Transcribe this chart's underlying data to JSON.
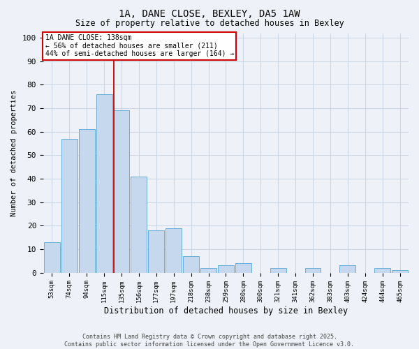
{
  "title_line1": "1A, DANE CLOSE, BEXLEY, DA5 1AW",
  "title_line2": "Size of property relative to detached houses in Bexley",
  "xlabel": "Distribution of detached houses by size in Bexley",
  "ylabel": "Number of detached properties",
  "categories": [
    "53sqm",
    "74sqm",
    "94sqm",
    "115sqm",
    "135sqm",
    "156sqm",
    "177sqm",
    "197sqm",
    "218sqm",
    "238sqm",
    "259sqm",
    "280sqm",
    "300sqm",
    "321sqm",
    "341sqm",
    "362sqm",
    "383sqm",
    "403sqm",
    "424sqm",
    "444sqm",
    "465sqm"
  ],
  "values": [
    13,
    57,
    61,
    76,
    69,
    41,
    18,
    19,
    7,
    2,
    3,
    4,
    0,
    2,
    0,
    2,
    0,
    3,
    0,
    2,
    1
  ],
  "bar_color": "#c5d8ed",
  "bar_edge_color": "#6aaed6",
  "red_line_index": 4,
  "annotation_title": "1A DANE CLOSE: 138sqm",
  "annotation_line1": "← 56% of detached houses are smaller (211)",
  "annotation_line2": "44% of semi-detached houses are larger (164) →",
  "annotation_box_color": "#ffffff",
  "annotation_box_edge": "#cc0000",
  "red_line_color": "#cc0000",
  "footer_line1": "Contains HM Land Registry data © Crown copyright and database right 2025.",
  "footer_line2": "Contains public sector information licensed under the Open Government Licence v3.0.",
  "background_color": "#eef2f8",
  "ylim": [
    0,
    102
  ],
  "yticks": [
    0,
    10,
    20,
    30,
    40,
    50,
    60,
    70,
    80,
    90,
    100
  ]
}
